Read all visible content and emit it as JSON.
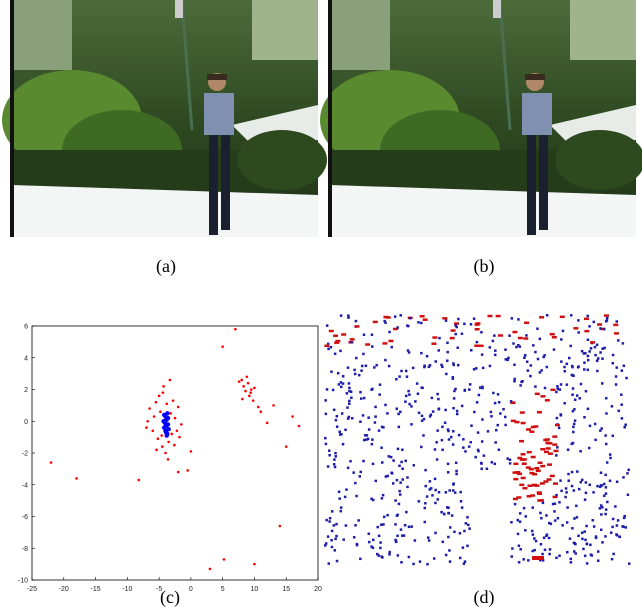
{
  "panels": [
    "(a)",
    "(b)",
    "(c)",
    "(d)"
  ],
  "chart_data": {
    "type": "scatter",
    "xlim": [
      -25,
      20
    ],
    "ylim": [
      -10,
      6
    ],
    "xticks": [
      -25,
      -20,
      -15,
      -10,
      -5,
      0,
      5,
      10,
      15,
      20
    ],
    "yticks": [
      -10,
      -8,
      -6,
      -4,
      -2,
      0,
      2,
      4,
      6
    ],
    "series": [
      {
        "color": "#ff0000",
        "x": [
          -22,
          -18,
          -8.2,
          -7,
          -6.5,
          -6,
          -5.5,
          -5.8,
          -5.2,
          -5,
          -4.8,
          -4.5,
          -4.3,
          -4,
          -3.8,
          -3.5,
          -3.2,
          -3,
          -2.8,
          -2.5,
          -2.2,
          -2,
          -1.5,
          -4.6,
          -3.6,
          -5.4,
          -2.6,
          -3.3,
          -4.1,
          -1.8,
          -2,
          0,
          -6.8,
          -3.9,
          -4.4,
          8,
          8.3,
          8.6,
          9,
          9.2,
          9.5,
          8.8,
          9.8,
          10,
          8.1,
          9.4,
          7.6,
          10.6,
          11,
          12,
          13,
          5,
          7,
          3,
          5.2,
          10,
          14,
          15,
          16,
          17,
          -0.5
        ],
        "values": [
          -2.6,
          -3.6,
          -3.7,
          -0.4,
          0.8,
          -0.6,
          1.2,
          0.3,
          -1.1,
          1.6,
          0.6,
          -1.6,
          2.2,
          -2,
          1.1,
          -1.3,
          0.5,
          -0.8,
          1.3,
          0.2,
          -0.6,
          0.9,
          -0.2,
          -0.9,
          -2.4,
          -1.8,
          -1.5,
          2.6,
          0.1,
          -1,
          -3.2,
          -1.9,
          0,
          -0.3,
          1.8,
          2.6,
          2.2,
          1.9,
          2.4,
          1.6,
          2,
          2.8,
          1.3,
          2.1,
          1.4,
          1.8,
          2.5,
          0.9,
          0.6,
          -0.1,
          1,
          4.7,
          5.8,
          -9.3,
          -8.7,
          -9,
          -6.6,
          -1.6,
          0.3,
          -0.3,
          -3.1
        ]
      },
      {
        "color": "#0000ff",
        "x": [
          -4,
          -3.8,
          -3.6,
          -4.2,
          -3.9,
          -3.7,
          -4.1,
          -3.5,
          -4.3,
          -3.8,
          -4,
          -3.6,
          -3.9,
          -4.2,
          -3.7
        ],
        "values": [
          0.3,
          0.1,
          -0.2,
          -0.4,
          -0.7,
          0.5,
          -0.1,
          -0.5,
          0,
          -0.9,
          -0.6,
          0.2,
          -0.3,
          0.4,
          -0.8
        ]
      }
    ]
  }
}
